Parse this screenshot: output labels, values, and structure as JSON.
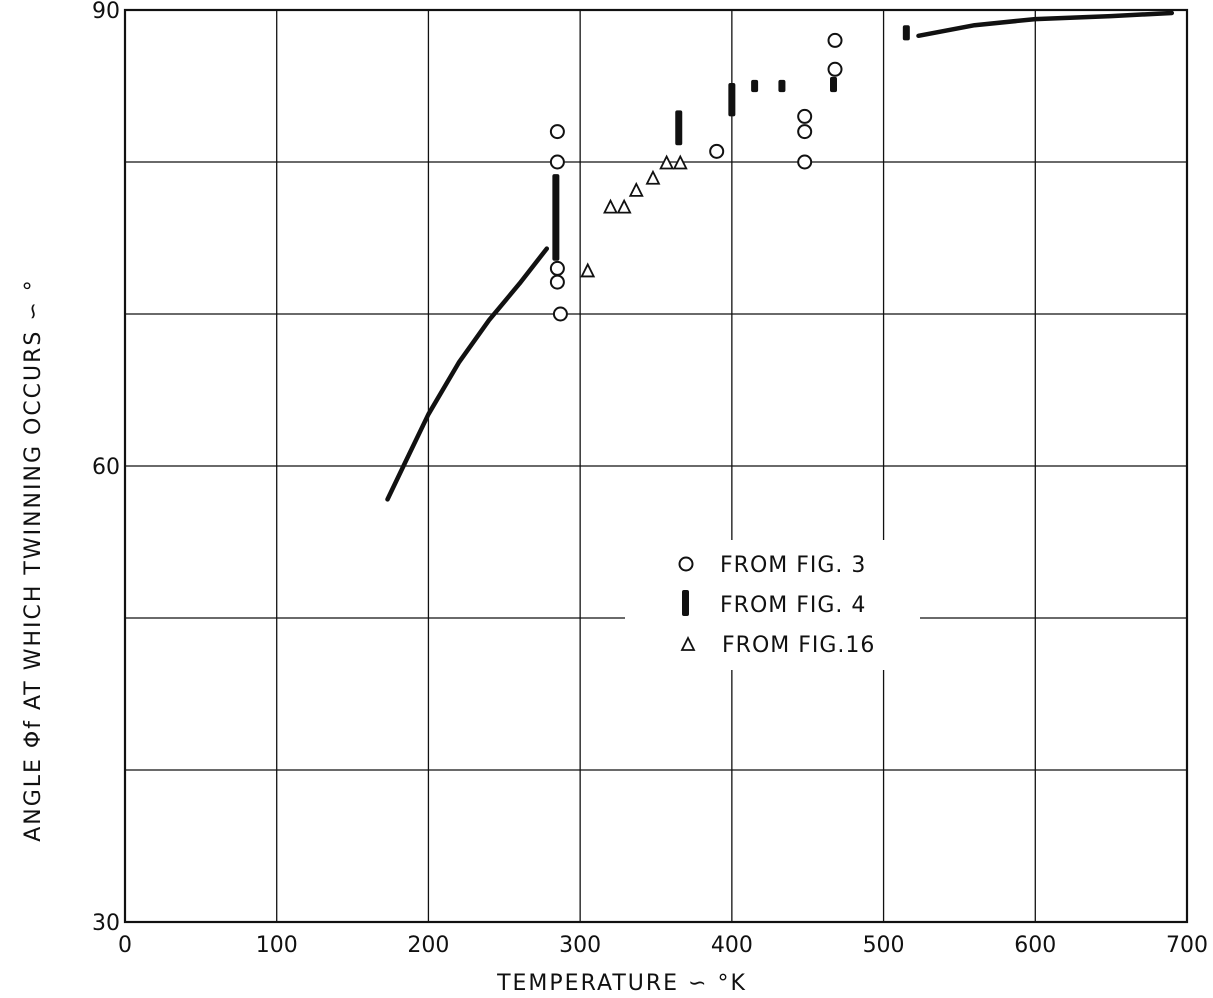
{
  "chart_data": {
    "type": "scatter",
    "xlabel": "TEMPERATURE ∽ °K",
    "ylabel": "ANGLE Φf AT WHICH TWINNING OCCURS ∽ °",
    "xlim": [
      0,
      700
    ],
    "ylim": [
      30,
      90
    ],
    "x_ticks": [
      0,
      100,
      200,
      300,
      400,
      500,
      600,
      700
    ],
    "x_tick_labels": [
      "0",
      "100",
      "200",
      "300",
      "400",
      "500",
      "600",
      "700"
    ],
    "y_ticks": [
      30,
      40,
      50,
      60,
      70,
      80,
      90
    ],
    "y_tick_labels": [
      "30",
      "",
      "",
      "60",
      "",
      "",
      "90"
    ],
    "grid": true,
    "legend_position": "center-right",
    "series": [
      {
        "name": "FROM FIG. 3",
        "marker": "circle",
        "points": [
          [
            285,
            82
          ],
          [
            285,
            80
          ],
          [
            285,
            73.0
          ],
          [
            285,
            72.1
          ],
          [
            287,
            70
          ],
          [
            390,
            80.7
          ],
          [
            448,
            83
          ],
          [
            448,
            82
          ],
          [
            448,
            80
          ],
          [
            468,
            88
          ],
          [
            468,
            86.1
          ]
        ]
      },
      {
        "name": "FROM FIG. 4",
        "marker": "bar",
        "ranges": [
          [
            284,
            73.5,
            79.2
          ],
          [
            365,
            81.1,
            83.4
          ],
          [
            400,
            83.0,
            85.2
          ],
          [
            415,
            84.6,
            85.4
          ],
          [
            433,
            84.6,
            85.4
          ],
          [
            467,
            84.6,
            85.6
          ],
          [
            515,
            88.0,
            89.0
          ]
        ]
      },
      {
        "name": "FROM FIG.16",
        "marker": "triangle",
        "points": [
          [
            305,
            72.8
          ],
          [
            320,
            77
          ],
          [
            329,
            77
          ],
          [
            337,
            78.1
          ],
          [
            348,
            78.9
          ],
          [
            357,
            79.9
          ],
          [
            366,
            79.9
          ]
        ]
      },
      {
        "name": "",
        "marker": "line",
        "points": [
          [
            173,
            57.8
          ],
          [
            185,
            60.3
          ],
          [
            200,
            63.4
          ],
          [
            220,
            66.8
          ],
          [
            240,
            69.6
          ],
          [
            260,
            72.0
          ],
          [
            278,
            74.3
          ]
        ]
      },
      {
        "name": "",
        "marker": "line",
        "points": [
          [
            523,
            88.3
          ],
          [
            560,
            89.0
          ],
          [
            600,
            89.4
          ],
          [
            650,
            89.6
          ],
          [
            690,
            89.8
          ]
        ]
      }
    ]
  }
}
